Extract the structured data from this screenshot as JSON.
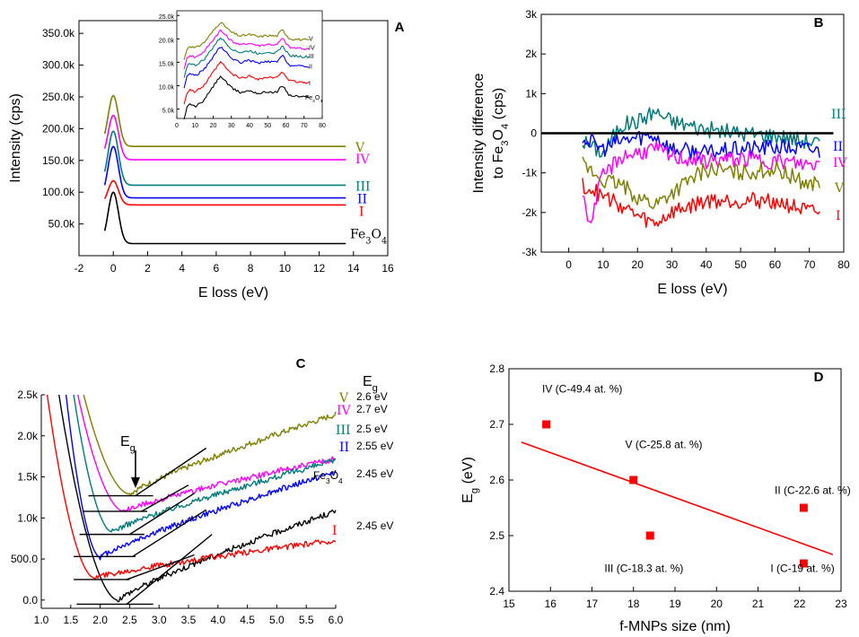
{
  "colors": {
    "V": "#808000",
    "IV": "#ff00ff",
    "III": "#007b7b",
    "II": "#0000ff",
    "I": "#ff0000",
    "Fe3O4": "#000000"
  },
  "chart_data": [
    {
      "panel": "A",
      "type": "line",
      "xlabel": "E loss (eV)",
      "ylabel": "Intensity (cps)",
      "xlim": [
        -2,
        16
      ],
      "ylim": [
        0,
        370000
      ],
      "xticks": [
        "-2",
        "0",
        "2",
        "4",
        "6",
        "8",
        "10",
        "12",
        "14",
        "16"
      ],
      "yticks": [
        "50.0k",
        "100.0k",
        "150.0k",
        "200.0k",
        "250.0k",
        "300.0k",
        "350.0k"
      ],
      "ytick_values": [
        50000,
        100000,
        150000,
        200000,
        250000,
        300000,
        350000
      ],
      "xtick_values": [
        -2,
        0,
        2,
        4,
        6,
        8,
        10,
        12,
        14,
        16
      ],
      "x_range": [
        -0.5,
        13.6
      ],
      "peak_sigma": 0.3,
      "series": [
        {
          "name": "V",
          "label": "V",
          "baseline": 172000,
          "peak": 252000
        },
        {
          "name": "IV",
          "label": "IV",
          "baseline": 151000,
          "peak": 221000
        },
        {
          "name": "III",
          "label": "III",
          "baseline": 111000,
          "peak": 196000
        },
        {
          "name": "II",
          "label": "II",
          "baseline": 91000,
          "peak": 172000
        },
        {
          "name": "I",
          "label": "I",
          "baseline": 80000,
          "peak": 118000
        },
        {
          "name": "Fe3O4",
          "label_main": "Fe",
          "label_sub1": "3",
          "label_mid": "O",
          "label_sub2": "4",
          "baseline": 19000,
          "peak": 100000
        }
      ],
      "inset": {
        "xlim": [
          0,
          80
        ],
        "ylim": [
          3000,
          26000
        ],
        "xticks": [
          "0",
          "10",
          "20",
          "30",
          "40",
          "50",
          "60",
          "70",
          "80"
        ],
        "xtick_values": [
          0,
          10,
          20,
          30,
          40,
          50,
          60,
          70,
          80
        ],
        "yticks": [
          "5.0k",
          "10.0k",
          "15.0k",
          "20.0k",
          "25.0k"
        ],
        "ytick_values": [
          5000,
          10000,
          15000,
          20000,
          25000
        ],
        "profile_x": [
          4,
          7,
          10,
          15,
          20,
          24,
          30,
          35,
          40,
          45,
          50,
          55,
          58,
          62,
          66,
          70,
          73
        ],
        "profile_y": [
          0,
          2800,
          1800,
          4000,
          8500,
          12000,
          8000,
          6500,
          7200,
          6200,
          6800,
          6500,
          9000,
          5500,
          5300,
          5000,
          5000
        ],
        "series": [
          {
            "name": "V",
            "label": "V",
            "offset": 17000
          },
          {
            "name": "IV",
            "label": "IV",
            "offset": 15000
          },
          {
            "name": "III",
            "label": "III",
            "offset": 13200
          },
          {
            "name": "II",
            "label": "II",
            "offset": 11000
          },
          {
            "name": "I",
            "label": "I",
            "offset": 7500
          },
          {
            "name": "Fe3O4",
            "label_main": "Fe",
            "label_sub1": "3",
            "label_mid": "O",
            "label_sub2": "4",
            "offset": 4300
          }
        ]
      }
    },
    {
      "panel": "B",
      "type": "line",
      "xlabel": "E loss (eV)",
      "ylabel_line1": "Intensity difference",
      "ylabel_line2_pre": "to Fe",
      "ylabel_sub1": "3",
      "ylabel_mid": "O",
      "ylabel_sub2": "4",
      "ylabel_post": " (cps)",
      "xlim": [
        -8,
        80
      ],
      "ylim": [
        -3000,
        3000
      ],
      "xticks": [
        "0",
        "10",
        "20",
        "30",
        "40",
        "50",
        "60",
        "70",
        "80"
      ],
      "xtick_values": [
        0,
        10,
        20,
        30,
        40,
        50,
        60,
        70,
        80
      ],
      "yticks": [
        "-3k",
        "-2k",
        "-1k",
        "0",
        "1k",
        "2k",
        "3k"
      ],
      "ytick_values": [
        -3000,
        -2000,
        -1000,
        0,
        1000,
        2000,
        3000
      ],
      "x_range": [
        4,
        73
      ],
      "zero_line": [
        -8,
        77
      ],
      "series": [
        {
          "name": "III",
          "label": "III",
          "x": [
            4,
            10,
            15,
            20,
            25,
            30,
            40,
            50,
            60,
            70,
            73
          ],
          "y": [
            -200,
            -500,
            200,
            300,
            550,
            300,
            100,
            0,
            -50,
            -200,
            -250
          ]
        },
        {
          "name": "II",
          "label": "II",
          "x": [
            4,
            10,
            15,
            20,
            25,
            30,
            40,
            50,
            60,
            70,
            73
          ],
          "y": [
            -100,
            -400,
            -200,
            -100,
            -50,
            -400,
            -500,
            -400,
            -350,
            -400,
            -450
          ]
        },
        {
          "name": "IV",
          "label": "IV",
          "x": [
            4,
            6,
            8,
            10,
            15,
            20,
            25,
            30,
            40,
            50,
            60,
            70,
            73
          ],
          "y": [
            -1400,
            -2400,
            -1600,
            -1100,
            -600,
            -500,
            -400,
            -600,
            -700,
            -650,
            -700,
            -800,
            -750
          ]
        },
        {
          "name": "V",
          "label": "V",
          "x": [
            4,
            10,
            15,
            20,
            25,
            30,
            40,
            50,
            60,
            70,
            73
          ],
          "y": [
            -800,
            -1200,
            -1300,
            -1600,
            -1800,
            -1500,
            -900,
            -1000,
            -900,
            -1300,
            -1200
          ]
        },
        {
          "name": "I",
          "label": "I",
          "x": [
            4,
            10,
            15,
            20,
            25,
            30,
            40,
            50,
            60,
            70,
            73
          ],
          "y": [
            -1300,
            -1600,
            -1800,
            -2100,
            -2300,
            -2000,
            -1700,
            -1700,
            -1700,
            -2000,
            -2000
          ]
        }
      ]
    },
    {
      "panel": "C",
      "type": "line",
      "xlim": [
        1.0,
        6.0
      ],
      "ylim": [
        -100,
        2500
      ],
      "xticks": [
        "1.0",
        "1.5",
        "2.0",
        "2.5",
        "3.0",
        "3.5",
        "4.0",
        "4.5",
        "5.0",
        "5.5",
        "6.0"
      ],
      "xtick_values": [
        1.0,
        1.5,
        2.0,
        2.5,
        3.0,
        3.5,
        4.0,
        4.5,
        5.0,
        5.5,
        6.0
      ],
      "yticks": [
        "0.0",
        "500.0",
        "1.0k",
        "1.5k",
        "2.0k",
        "2.5k"
      ],
      "ytick_values": [
        0,
        500,
        1000,
        1500,
        2000,
        2500
      ],
      "eg_title": "E",
      "eg_title_sub": "g",
      "arrow_label": "E",
      "arrow_label_sub": "g",
      "series": [
        {
          "name": "V",
          "label": "V",
          "eg": "2.6 eV",
          "start_x": 1.72,
          "min_x": 2.5,
          "min_y": 1290,
          "end_y": 2260
        },
        {
          "name": "IV",
          "label": "IV",
          "eg": "2.7 eV",
          "start_x": 1.62,
          "min_x": 2.4,
          "min_y": 1080,
          "end_y": 1720
        },
        {
          "name": "III",
          "label": "III",
          "eg": "2.5 eV",
          "start_x": 1.55,
          "min_x": 2.2,
          "min_y": 830,
          "end_y": 1700
        },
        {
          "name": "II",
          "label": "II",
          "eg": "2.55 eV",
          "start_x": 1.42,
          "min_x": 2.0,
          "min_y": 520,
          "end_y": 1560
        },
        {
          "name": "Fe3O4",
          "label_main": "Fe",
          "label_sub1": "3",
          "label_mid": "O",
          "label_sub2": "4",
          "eg": "2.45 eV",
          "start_x": 1.3,
          "min_x": 2.3,
          "min_y": 0,
          "end_y": 1080
        },
        {
          "name": "I",
          "label": "I",
          "eg": "2.45 eV",
          "start_x": 1.1,
          "min_x": 1.9,
          "min_y": 270,
          "end_y": 730
        }
      ],
      "baselines": [
        {
          "name": "V",
          "x1": 1.8,
          "x2": 2.9,
          "y": 1270
        },
        {
          "name": "IV",
          "x1": 1.7,
          "x2": 2.8,
          "y": 1080
        },
        {
          "name": "III",
          "x1": 1.65,
          "x2": 2.75,
          "y": 800
        },
        {
          "name": "II",
          "x1": 1.55,
          "x2": 2.6,
          "y": 530
        },
        {
          "name": "I",
          "x1": 1.55,
          "x2": 2.5,
          "y": 250
        },
        {
          "name": "Fe3O4",
          "x1": 1.6,
          "x2": 2.9,
          "y": -50
        }
      ],
      "tangents": [
        {
          "name": "V",
          "x1": 2.6,
          "y1": 1270,
          "x2": 3.8,
          "y2": 1850
        },
        {
          "name": "IV",
          "x1": 2.7,
          "y1": 1080,
          "x2": 3.5,
          "y2": 1400
        },
        {
          "name": "III",
          "x1": 2.5,
          "y1": 800,
          "x2": 3.6,
          "y2": 1300
        },
        {
          "name": "II",
          "x1": 2.55,
          "y1": 530,
          "x2": 3.8,
          "y2": 1100
        },
        {
          "name": "I",
          "x1": 2.45,
          "y1": 250,
          "x2": 3.6,
          "y2": 550
        },
        {
          "name": "Fe3O4",
          "x1": 2.45,
          "y1": -50,
          "x2": 3.9,
          "y2": 800
        }
      ]
    },
    {
      "panel": "D",
      "type": "scatter",
      "xlabel": "f-MNPs size (nm)",
      "ylabel": "E",
      "ylabel_sub": "g",
      "ylabel_post": " (eV)",
      "xlim": [
        15,
        23
      ],
      "ylim": [
        2.4,
        2.8
      ],
      "xticks": [
        "15",
        "16",
        "17",
        "18",
        "19",
        "20",
        "21",
        "22",
        "23"
      ],
      "xtick_values": [
        15,
        16,
        17,
        18,
        19,
        20,
        21,
        22,
        23
      ],
      "yticks": [
        "2.4",
        "2.5",
        "2.6",
        "2.7",
        "2.8"
      ],
      "ytick_values": [
        2.4,
        2.5,
        2.6,
        2.7,
        2.8
      ],
      "points": [
        {
          "x": 15.9,
          "y": 2.7,
          "label": "IV (C-49.4 at. %)",
          "lx": 15.8,
          "ly": 2.757
        },
        {
          "x": 18.0,
          "y": 2.6,
          "label": "V (C-25.8 at. %)",
          "lx": 17.8,
          "ly": 2.657
        },
        {
          "x": 22.1,
          "y": 2.55,
          "label": "II (C-22.6 at. %)",
          "lx": 21.4,
          "ly": 2.575
        },
        {
          "x": 18.4,
          "y": 2.5,
          "label": "III (C-18.3 at. %)",
          "lx": 17.3,
          "ly": 2.435
        },
        {
          "x": 22.1,
          "y": 2.45,
          "label": "I (C-19 at. %)",
          "lx": 21.3,
          "ly": 2.435
        }
      ],
      "fit": {
        "x": [
          15.3,
          22.8
        ],
        "y": [
          2.668,
          2.466
        ]
      }
    }
  ]
}
